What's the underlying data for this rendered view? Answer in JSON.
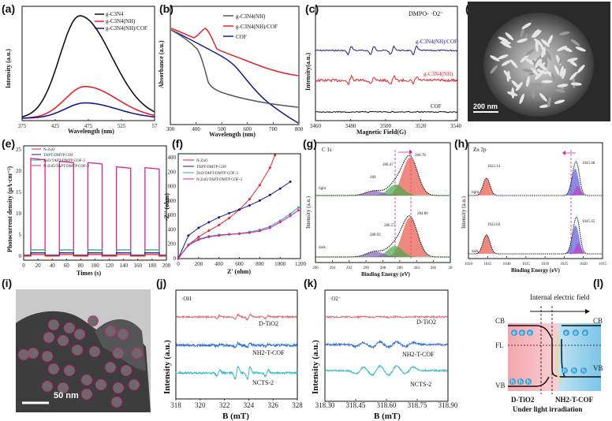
{
  "colors": {
    "black": "#111111",
    "red": "#e8222a",
    "navy": "#1a1a8c",
    "blue": "#2f6fd1",
    "teal": "#2aa39a",
    "magenta": "#e3208f",
    "cyan": "#35bcc9",
    "pink": "#e36a7a"
  },
  "chart_data": [
    {
      "id": "a",
      "label": "(a)",
      "type": "line",
      "xlabel": "Wavelength (nm)",
      "ylabel": "Intensity (a.u.)",
      "xticks": [
        "375",
        "425",
        "475",
        "525",
        "57"
      ],
      "xlim": [
        375,
        575
      ],
      "legend": [
        "g-C3N4",
        "g-C3N4(NH)",
        "g-C3N4(NH)/COF"
      ],
      "series": [
        {
          "name": "g-C3N4",
          "peak_x": 462,
          "peak": 1.0
        },
        {
          "name": "g-C3N4(NH)",
          "peak_x": 470,
          "peak": 0.31
        },
        {
          "name": "g-C3N4(NH)/COF",
          "peak_x": 470,
          "peak": 0.15
        }
      ]
    },
    {
      "id": "b",
      "label": "(b)",
      "type": "line",
      "xlabel": "Wavelength (nm)",
      "ylabel": "Absorbance (a.u.)",
      "xticks": [
        "300",
        "400",
        "500",
        "600",
        "700",
        "800"
      ],
      "xlim": [
        300,
        800
      ],
      "legend": [
        "g-C3N4(NH)",
        "g-C3N4(NH)/COF",
        "COF"
      ]
    },
    {
      "id": "c",
      "label": "(c)",
      "type": "line",
      "xlabel": "Magnetic Field(G)",
      "ylabel": "Intensity(a.u.)",
      "xticks": [
        "3460",
        "3480",
        "3500",
        "3520",
        "3540"
      ],
      "xlim": [
        3460,
        3545
      ],
      "annotations": [
        "DMPO- ·O2⁻",
        "g-C3N4(NH)/COF",
        "g-C3N4(NH)",
        "COF"
      ]
    },
    {
      "id": "e",
      "label": "(e)",
      "type": "line",
      "xlabel": "Times (s)",
      "ylabel": "Photocurrent density (μA·cm⁻²)",
      "xticks": [
        "0",
        "20",
        "40",
        "60",
        "80",
        "100",
        "120",
        "140",
        "160",
        "180",
        "200"
      ],
      "yticks": [
        "0",
        "5",
        "10",
        "15",
        "20",
        "25"
      ],
      "xlim": [
        0,
        200
      ],
      "ylim": [
        0,
        25
      ],
      "legend": [
        "N-ZnO",
        "TAPT-DMTP COF",
        "ZnO/TAPT-DMTP COF-3",
        "N-ZnO/TAPT-DMTP COF-3"
      ],
      "on_periods": [
        [
          10,
          30
        ],
        [
          50,
          70
        ],
        [
          90,
          110
        ],
        [
          130,
          150
        ],
        [
          170,
          190
        ]
      ],
      "series": [
        {
          "name": "N-ZnO/TAPT-DMTP COF-3",
          "on_values": [
            23,
            22.3,
            22,
            21,
            20.8
          ],
          "off": 0.3
        },
        {
          "name": "ZnO/TAPT-DMTP COF-3",
          "on_values": [
            1.5,
            1.5,
            1.5,
            1.5,
            1.5
          ],
          "off": 0.2
        },
        {
          "name": "TAPT-DMTP COF",
          "on_values": [
            0.8,
            0.8,
            0.8,
            0.8,
            0.8
          ],
          "off": 0.1
        },
        {
          "name": "N-ZnO",
          "on_values": [
            0.4,
            0.4,
            0.4,
            0.4,
            0.4
          ],
          "off": 0.05
        }
      ]
    },
    {
      "id": "f",
      "label": "(f)",
      "type": "line",
      "xlabel": "Z' (ohm)",
      "ylabel": "-Z'' (ohm)",
      "xticks": [
        "0",
        "200",
        "400",
        "600",
        "800",
        "1000",
        "1200"
      ],
      "yticks": [
        "0",
        "200",
        "400",
        "600",
        "800",
        "1000",
        "1200",
        "1400"
      ],
      "xlim": [
        0,
        1200
      ],
      "ylim": [
        0,
        1500
      ],
      "legend": [
        "N-ZnO",
        "TAPT-DMTP COF",
        "ZnO/TAPT-DMTP COF-3",
        "N-ZnO/TAPT-DMTP COF-3"
      ],
      "series": [
        {
          "name": "N-ZnO",
          "x": [
            0,
            100,
            200,
            300,
            400,
            500,
            600,
            700,
            800,
            900,
            950
          ],
          "y": [
            0,
            200,
            310,
            400,
            480,
            580,
            700,
            850,
            1050,
            1300,
            1480
          ]
        },
        {
          "name": "TAPT-DMTP COF",
          "x": [
            0,
            100,
            200,
            300,
            400,
            500,
            600,
            700,
            800,
            900,
            1000,
            1100
          ],
          "y": [
            0,
            330,
            440,
            520,
            590,
            650,
            700,
            760,
            830,
            910,
            1000,
            1100
          ]
        },
        {
          "name": "ZnO/TAPT-DMTP COF-3",
          "x": [
            0,
            100,
            200,
            300,
            400,
            500,
            600,
            700,
            800,
            900,
            1000,
            1100,
            1180
          ],
          "y": [
            0,
            200,
            280,
            320,
            340,
            350,
            360,
            380,
            410,
            460,
            540,
            640,
            730
          ]
        },
        {
          "name": "N-ZnO/TAPT-DMTP COF-3",
          "x": [
            0,
            100,
            200,
            300,
            400,
            500,
            600,
            700,
            800,
            900,
            1000,
            1100,
            1180
          ],
          "y": [
            0,
            190,
            270,
            310,
            330,
            345,
            355,
            370,
            395,
            440,
            520,
            610,
            690
          ]
        }
      ]
    },
    {
      "id": "g",
      "label": "(g)",
      "type": "line",
      "title": "C 1s",
      "xlabel": "Binding Energy (eV)",
      "ylabel": "Intensity (a.u.)",
      "xticks": [
        "296",
        "294",
        "292",
        "290",
        "288",
        "286",
        "284",
        "282",
        "28"
      ],
      "xlim": [
        296,
        280
      ],
      "annotations": [
        "284.78",
        "286.47",
        "289",
        "284.80",
        "286.57",
        "288.92",
        "light",
        "dark"
      ]
    },
    {
      "id": "h",
      "label": "(h)",
      "type": "line",
      "title": "Zn 2p",
      "xlabel": "Binding Energy (eV)",
      "ylabel": "Intensity (a.u.)",
      "xticks": [
        "1050",
        "1045",
        "1040",
        "1035",
        "1030",
        "1025",
        "1020",
        "1015"
      ],
      "xlim": [
        1050,
        1015
      ],
      "annotations": [
        "1022.14",
        "1045.48",
        "1022.04",
        "1045.45",
        "light",
        "dark"
      ]
    },
    {
      "id": "j",
      "label": "(j)",
      "type": "line",
      "title": "·OH",
      "xlabel": "B (mT)",
      "ylabel": "Intensity (a.u.)",
      "xticks": [
        "318",
        "320",
        "322",
        "324",
        "326",
        "328"
      ],
      "xlim": [
        318,
        328
      ],
      "series_labels": [
        "D-TiO2",
        "NH2-T-COF",
        "NCTS-2"
      ]
    },
    {
      "id": "k",
      "label": "(k)",
      "type": "line",
      "title": "·O2⁻",
      "xlabel": "B (mT)",
      "ylabel": "Intensity (a.u.)",
      "xticks": [
        "318.30",
        "318.45",
        "318.60",
        "318.75",
        "318.90"
      ],
      "xlim": [
        318.3,
        318.9
      ],
      "series_labels": [
        "D-TiO2",
        "NH2-T-COF",
        "NCTS-2"
      ]
    }
  ],
  "images": {
    "d": {
      "label": "(d)",
      "scale": "200 nm"
    },
    "i": {
      "label": "(i)",
      "scale": "50 nm"
    }
  },
  "schematic_l": {
    "label": "(l)",
    "title": "Internal electric field",
    "cb": "CB",
    "fl": "FL",
    "vb": "VB",
    "left": "D-TiO2",
    "right": "NH2-T-COF",
    "caption": "Under light irradiation",
    "e": "e",
    "h": "h"
  }
}
